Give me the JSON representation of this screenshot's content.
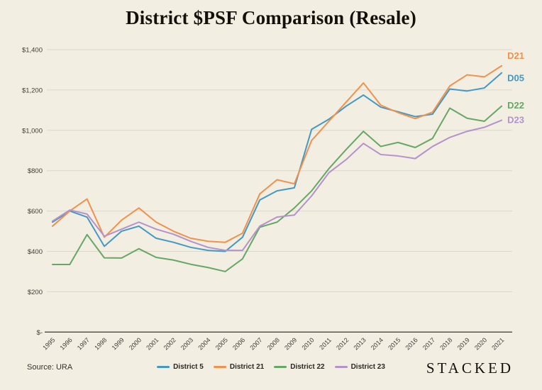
{
  "title": "District $PSF Comparison (Resale)",
  "source": "Source: URA",
  "brand": "STACKED",
  "colors": {
    "background": "#f2eee2",
    "gridline": "#ddd7c7",
    "axis_line": "#4a4840",
    "tick_text": "#3f3d38",
    "title_text": "#14110c"
  },
  "chart_data": {
    "type": "line",
    "title": "District $PSF Comparison (Resale)",
    "xlabel": "",
    "ylabel": "",
    "ylim": [
      0,
      1400
    ],
    "ytick_step": 200,
    "ytick_labels": [
      "$-",
      "$200",
      "$400",
      "$600",
      "$800",
      "$1,000",
      "$1,200",
      "$1,400"
    ],
    "grid": "horizontal",
    "legend_position": "bottom-center",
    "x": [
      1995,
      1996,
      1997,
      1998,
      1999,
      2000,
      2001,
      2002,
      2003,
      2004,
      2005,
      2006,
      2007,
      2008,
      2009,
      2010,
      2011,
      2012,
      2013,
      2014,
      2015,
      2016,
      2017,
      2018,
      2019,
      2020,
      2021
    ],
    "series": [
      {
        "name": "District 5",
        "end_label": "D05",
        "color": "#4399c4",
        "values": [
          545,
          600,
          570,
          425,
          500,
          525,
          465,
          445,
          420,
          405,
          400,
          470,
          655,
          700,
          715,
          1005,
          1055,
          1120,
          1175,
          1115,
          1092,
          1068,
          1080,
          1205,
          1195,
          1210,
          1285
        ]
      },
      {
        "name": "District 21",
        "end_label": "D21",
        "color": "#f0914d",
        "values": [
          525,
          600,
          660,
          470,
          555,
          615,
          545,
          500,
          465,
          450,
          445,
          490,
          685,
          755,
          735,
          950,
          1045,
          1140,
          1235,
          1125,
          1088,
          1058,
          1090,
          1220,
          1275,
          1265,
          1320
        ]
      },
      {
        "name": "District 22",
        "end_label": "D22",
        "color": "#67a766",
        "values": [
          335,
          335,
          483,
          368,
          367,
          413,
          370,
          357,
          336,
          320,
          300,
          363,
          520,
          545,
          615,
          700,
          810,
          905,
          995,
          920,
          940,
          915,
          960,
          1110,
          1060,
          1045,
          1120
        ]
      },
      {
        "name": "District 23",
        "end_label": "D23",
        "color": "#b492cc",
        "values": [
          550,
          605,
          585,
          475,
          510,
          545,
          510,
          485,
          450,
          420,
          405,
          405,
          525,
          570,
          580,
          675,
          790,
          855,
          935,
          880,
          873,
          860,
          920,
          965,
          995,
          1015,
          1050
        ]
      }
    ]
  }
}
